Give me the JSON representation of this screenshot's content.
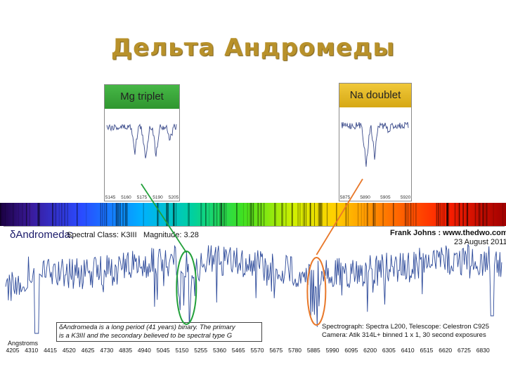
{
  "slide": {
    "title": "Дельта Андромеды"
  },
  "colors": {
    "title": "#b8912a",
    "spectrum_line": "#2d4a9a",
    "mg_head": "#3aa33a",
    "na_head": "#e5b91a",
    "mg_marker": "#22a03a",
    "na_marker": "#e8782a"
  },
  "insets": {
    "mg": {
      "label": "Mg triplet",
      "ticks": [
        "5145",
        "5160",
        "5175",
        "5190",
        "5205"
      ]
    },
    "na": {
      "label": "Na doublet",
      "ticks": [
        "5875",
        "5890",
        "5905",
        "5920"
      ]
    }
  },
  "header": {
    "star_symbol": "δ",
    "star_name": "Andromeda:",
    "spectral_class": "Spectral Class: K3III",
    "magnitude": "Magnitude: 3.28",
    "author": "Frank Johns :  www.thedwo.com",
    "date": "23 August 2011"
  },
  "notes": {
    "binary_line1": "δAndromeda is a long period (41 years) binary. The primary",
    "binary_line2": "is a K3III and the secondary believed to be spectral type G",
    "equip_line1": "Spectrograph: Spectra L200, Telescope: Celestron C925",
    "equip_line2": "Camera: Atik 314L+ binned 1 x 1, 30 second exposures"
  },
  "chart_data": {
    "type": "line",
    "xlabel": "Angstroms",
    "x_ticks": [
      4205,
      4310,
      4415,
      4520,
      4625,
      4730,
      4835,
      4940,
      5045,
      5150,
      5255,
      5360,
      5465,
      5570,
      5675,
      5780,
      5885,
      5990,
      6095,
      6200,
      6305,
      6410,
      6515,
      6620,
      6725,
      6830
    ],
    "xlim": [
      4205,
      6880
    ],
    "highlighted_regions": [
      {
        "name": "Mg triplet",
        "center": 5175
      },
      {
        "name": "Na doublet",
        "center": 5893
      }
    ]
  }
}
